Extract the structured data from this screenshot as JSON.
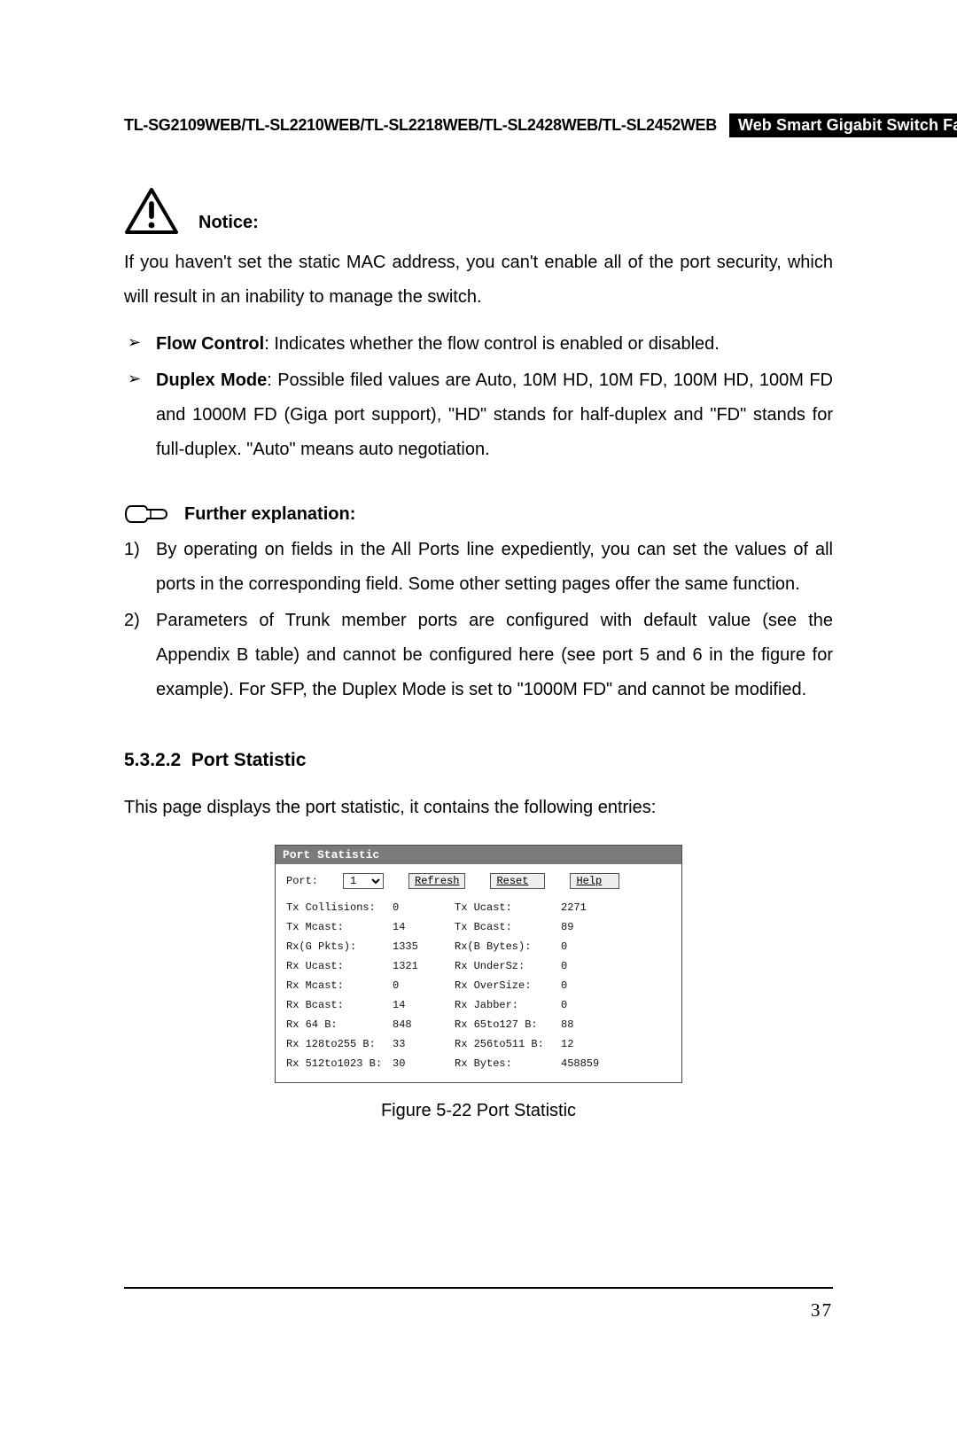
{
  "header": {
    "models": "TL-SG2109WEB/TL-SL2210WEB/TL-SL2218WEB/TL-SL2428WEB/TL-SL2452WEB",
    "title": "Web Smart Gigabit Switch Family User's Guide"
  },
  "notice": {
    "label": "Notice:",
    "text": "If you haven't set the static MAC address, you can't enable all of the port security, which will result in an inability to manage the switch."
  },
  "bullets": {
    "flow_label": "Flow Control",
    "flow_text": ": Indicates whether the flow control is enabled or disabled.",
    "duplex_label": "Duplex Mode",
    "duplex_text": ": Possible filed values are Auto, 10M HD, 10M FD, 100M HD, 100M FD and 1000M FD (Giga port support), \"HD\" stands for half-duplex and \"FD\" stands for full-duplex. \"Auto\" means auto negotiation."
  },
  "further": {
    "label": "Further explanation:",
    "item1": "By operating on fields in the All Ports line expediently, you can set the values of all ports in the corresponding field. Some other setting pages offer the same function.",
    "item2": "Parameters of Trunk member ports are configured with default value (see the Appendix B table) and cannot be configured here (see port 5 and 6 in the figure for example). For SFP, the Duplex Mode is set to \"1000M FD\" and cannot be modified."
  },
  "section": {
    "number": "5.3.2.2",
    "title": "Port Statistic",
    "intro": "This page displays the port statistic, it contains the following entries:"
  },
  "screenshot": {
    "title": "Port Statistic",
    "port_label": "Port:",
    "port_value": "1",
    "btn_refresh": "Refresh",
    "btn_reset": "Reset",
    "btn_help": "Help",
    "rows": [
      {
        "k1": "Tx Collisions:",
        "v1": "0",
        "k2": "Tx Ucast:",
        "v2": "2271"
      },
      {
        "k1": "Tx Mcast:",
        "v1": "14",
        "k2": "Tx Bcast:",
        "v2": "89"
      },
      {
        "k1": "Rx(G Pkts):",
        "v1": "1335",
        "k2": "Rx(B Bytes):",
        "v2": "0"
      },
      {
        "k1": "Rx Ucast:",
        "v1": "1321",
        "k2": "Rx UnderSz:",
        "v2": "0"
      },
      {
        "k1": "Rx Mcast:",
        "v1": "0",
        "k2": "Rx OverSize:",
        "v2": "0"
      },
      {
        "k1": "Rx Bcast:",
        "v1": "14",
        "k2": "Rx Jabber:",
        "v2": "0"
      },
      {
        "k1": "Rx 64 B:",
        "v1": "848",
        "k2": "Rx 65to127 B:",
        "v2": "88"
      },
      {
        "k1": "Rx 128to255 B:",
        "v1": "33",
        "k2": "Rx 256to511 B:",
        "v2": "12"
      },
      {
        "k1": "Rx 512to1023 B:",
        "v1": "30",
        "k2": "Rx Bytes:",
        "v2": "458859"
      }
    ]
  },
  "figure_caption": "Figure 5-22  Port Statistic",
  "page_number": "37"
}
